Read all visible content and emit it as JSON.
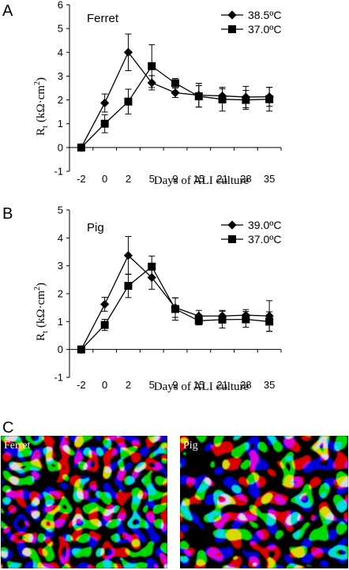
{
  "chart_data": [
    {
      "panel": "A",
      "type": "line",
      "label": "Ferret",
      "categories": [
        "-2",
        "0",
        "2",
        "5",
        "9",
        "15",
        "21",
        "28",
        "35"
      ],
      "xlabel": "Days of ALI culture",
      "ylabel_main": "R",
      "ylabel_sub": "t",
      "ylabel_unit": "(kΩ·cm",
      "ylabel_sup": "2",
      "ylabel_close": ")",
      "ylim": [
        -1,
        6
      ],
      "yticks": [
        -1,
        0,
        1,
        2,
        3,
        4,
        5,
        6
      ],
      "legend_position": "top-right",
      "series": [
        {
          "name": "38.5ºC",
          "marker": "diamond",
          "values": [
            0,
            1.87,
            4.0,
            2.72,
            2.3,
            2.2,
            2.17,
            2.12,
            2.13
          ],
          "errors": [
            0,
            0.38,
            0.77,
            0.3,
            0.2,
            0.5,
            0.3,
            0.45,
            0.4
          ]
        },
        {
          "name": "37.0ºC",
          "marker": "square",
          "values": [
            0,
            1.0,
            1.93,
            3.42,
            2.7,
            2.15,
            2.03,
            2.0,
            2.03
          ],
          "errors": [
            0,
            0.38,
            0.52,
            0.9,
            0.2,
            0.45,
            0.5,
            0.4,
            0.5
          ]
        }
      ]
    },
    {
      "panel": "B",
      "type": "line",
      "label": "Pig",
      "categories": [
        "-2",
        "0",
        "2",
        "5",
        "9",
        "15",
        "21",
        "28",
        "35"
      ],
      "xlabel": "Days of ALI culture",
      "ylabel_main": "R",
      "ylabel_sub": "t",
      "ylabel_unit": "(kΩ·cm",
      "ylabel_sup": "2",
      "ylabel_close": ")",
      "ylim": [
        -1,
        5
      ],
      "yticks": [
        -1,
        0,
        1,
        2,
        3,
        4,
        5
      ],
      "legend_position": "top-right",
      "series": [
        {
          "name": "39.0ºC",
          "marker": "diamond",
          "values": [
            0,
            1.62,
            3.37,
            2.58,
            1.5,
            1.2,
            1.2,
            1.23,
            1.2
          ],
          "errors": [
            0,
            0.25,
            0.68,
            0.42,
            0.35,
            0.2,
            0.2,
            0.2,
            0.55
          ]
        },
        {
          "name": "37.0ºC",
          "marker": "square",
          "values": [
            0,
            0.88,
            2.28,
            2.97,
            1.45,
            1.03,
            1.07,
            1.08,
            1.0
          ],
          "errors": [
            0,
            0.2,
            0.42,
            0.38,
            0.4,
            0.15,
            0.3,
            0.28,
            0.35
          ]
        }
      ]
    }
  ],
  "panels": {
    "a_letter": "A",
    "b_letter": "B",
    "c_letter": "C"
  },
  "images": {
    "left_label": "Ferret",
    "right_label": "Pig"
  }
}
